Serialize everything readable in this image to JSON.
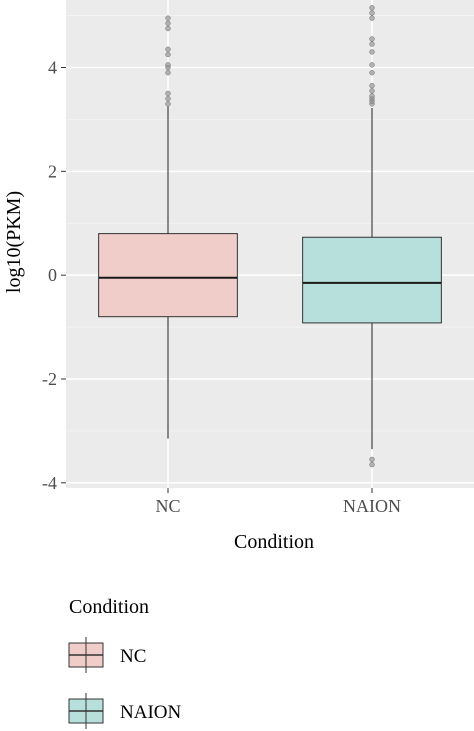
{
  "chart_data": {
    "type": "box",
    "xlabel": "Condition",
    "ylabel": "log10(PKM)",
    "ylim": [
      -4.1,
      5.3
    ],
    "yticks": [
      -4,
      -2,
      0,
      2,
      4
    ],
    "ytick_labels": [
      "-4",
      "-2",
      "0",
      "2",
      "4"
    ],
    "categories": [
      "NC",
      "NAION"
    ],
    "grid": true,
    "legend": {
      "title": "Condition",
      "position": "bottom-left"
    },
    "series": [
      {
        "name": "NC",
        "color": "#f0cdc9",
        "whisker_low": -3.15,
        "q1": -0.8,
        "median": -0.05,
        "q3": 0.8,
        "whisker_high": 3.25,
        "outliers": [
          3.3,
          3.4,
          3.5,
          3.9,
          4.0,
          4.05,
          4.25,
          4.35,
          4.75,
          4.85,
          4.95
        ]
      },
      {
        "name": "NAION",
        "color": "#b7e0dd",
        "whisker_low": -3.35,
        "q1": -0.92,
        "median": -0.15,
        "q3": 0.73,
        "whisker_high": 3.22,
        "outliers": [
          -3.55,
          -3.65,
          3.3,
          3.35,
          3.4,
          3.45,
          3.55,
          3.65,
          3.9,
          4.05,
          4.3,
          4.45,
          4.55,
          4.95,
          5.05,
          5.15
        ]
      }
    ]
  }
}
